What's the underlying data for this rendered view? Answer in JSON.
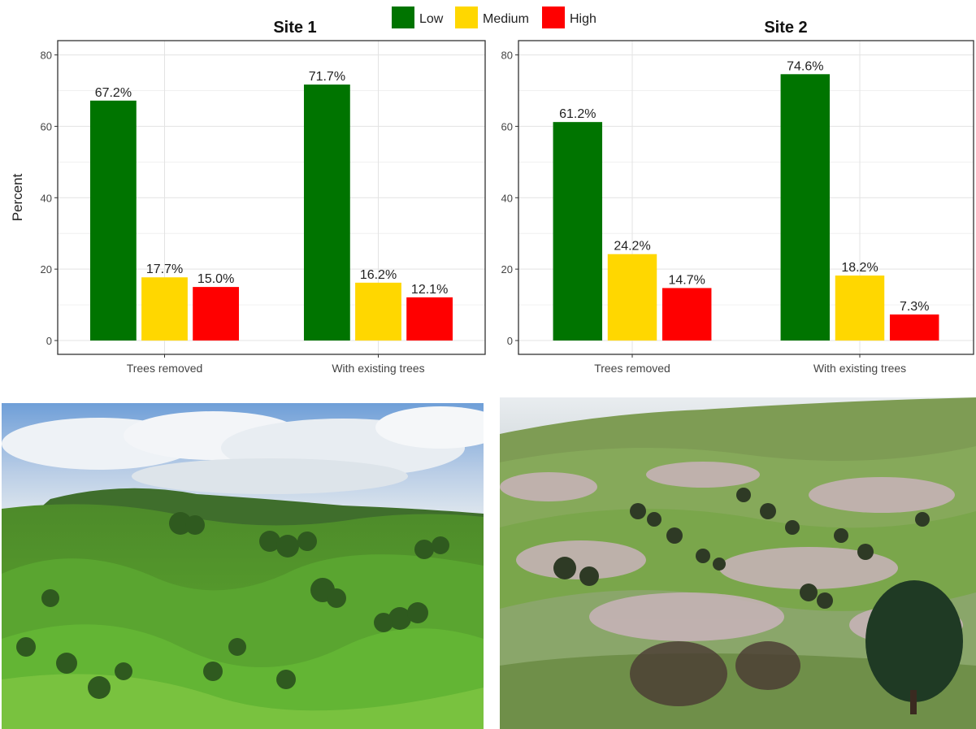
{
  "legend": {
    "items": [
      {
        "label": "Low",
        "color": "#007400"
      },
      {
        "label": "Medium",
        "color": "#FFD700"
      },
      {
        "label": "High",
        "color": "#FF0000"
      }
    ]
  },
  "chart_data": [
    {
      "type": "bar",
      "title": "Site 1",
      "ylabel": "Percent",
      "xlabel": "",
      "ylim": [
        0,
        84
      ],
      "yticks": [
        0,
        20,
        40,
        60,
        80
      ],
      "grid": true,
      "legend_position": "top",
      "categories": [
        "Trees removed",
        "With existing trees"
      ],
      "series": [
        {
          "name": "Low",
          "color": "#007400",
          "values": [
            67.2,
            71.7
          ],
          "labels": [
            "67.2%",
            "71.7%"
          ]
        },
        {
          "name": "Medium",
          "color": "#FFD700",
          "values": [
            17.7,
            16.2
          ],
          "labels": [
            "17.7%",
            "16.2%"
          ]
        },
        {
          "name": "High",
          "color": "#FF0000",
          "values": [
            15.0,
            12.1
          ],
          "labels": [
            "15.0%",
            "12.1%"
          ]
        }
      ]
    },
    {
      "type": "bar",
      "title": "Site 2",
      "ylabel": "",
      "xlabel": "",
      "ylim": [
        0,
        84
      ],
      "yticks": [
        0,
        20,
        40,
        60,
        80
      ],
      "grid": true,
      "legend_position": "top",
      "categories": [
        "Trees removed",
        "With existing trees"
      ],
      "series": [
        {
          "name": "Low",
          "color": "#007400",
          "values": [
            61.2,
            74.6
          ],
          "labels": [
            "61.2%",
            "74.6%"
          ]
        },
        {
          "name": "Medium",
          "color": "#FFD700",
          "values": [
            24.2,
            18.2
          ],
          "labels": [
            "24.2%",
            "18.2%"
          ]
        },
        {
          "name": "High",
          "color": "#FF0000",
          "values": [
            14.7,
            7.3
          ],
          "labels": [
            "14.7%",
            "7.3%"
          ]
        }
      ]
    }
  ]
}
